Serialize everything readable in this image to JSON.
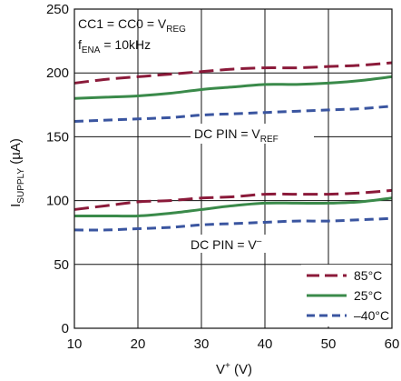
{
  "chart_data": {
    "type": "line",
    "xlabel": {
      "base": "V",
      "sup": "+",
      "tail": " (V)"
    },
    "ylabel": {
      "base": "I",
      "sub": "SUPPLY",
      "tail": " (µA)"
    },
    "xlim": [
      10,
      60
    ],
    "ylim": [
      0,
      250
    ],
    "x_ticks": [
      "10",
      "20",
      "30",
      "40",
      "50",
      "60"
    ],
    "y_ticks": [
      "0",
      "50",
      "100",
      "150",
      "200",
      "250"
    ],
    "grid": true,
    "legend_position": "bottom-right",
    "annotations": {
      "condition1": {
        "base": "CC1 = CC0 = V",
        "sub": "REG"
      },
      "condition2": {
        "base": "f",
        "sub": "ENA",
        "tail": " = 10kHz"
      },
      "dc_ref": {
        "base": "DC PIN = V",
        "sub": "REF"
      },
      "dc_vminus": {
        "base": "DC PIN = V",
        "sup": "–"
      }
    },
    "x": [
      10,
      15,
      20,
      25,
      30,
      35,
      40,
      45,
      50,
      55,
      60
    ],
    "series": [
      {
        "name": "85°C",
        "color": "#8b1a3a",
        "dash": "long-dash",
        "values": [
          192,
          195,
          197,
          199,
          201,
          203,
          204,
          204,
          205,
          206,
          208
        ]
      },
      {
        "name": "25°C",
        "color": "#3a8a4a",
        "dash": "solid",
        "values": [
          180,
          181,
          182,
          184,
          187,
          189,
          191,
          191,
          192,
          194,
          197
        ]
      },
      {
        "name": "–40°C",
        "color": "#3a55a0",
        "dash": "dashed",
        "values": [
          162,
          163,
          164,
          165,
          167,
          168,
          169,
          170,
          171,
          172,
          174
        ]
      },
      {
        "name": "85°C",
        "color": "#8b1a3a",
        "dash": "long-dash",
        "legend": false,
        "values": [
          93,
          96,
          99,
          100,
          102,
          103,
          105,
          105,
          105,
          106,
          108
        ]
      },
      {
        "name": "25°C",
        "color": "#3a8a4a",
        "dash": "solid",
        "legend": false,
        "values": [
          88,
          88,
          88,
          90,
          93,
          96,
          98,
          98,
          98,
          99,
          102
        ]
      },
      {
        "name": "–40°C",
        "color": "#3a55a0",
        "dash": "dashed",
        "legend": false,
        "values": [
          77,
          77,
          78,
          79,
          81,
          82,
          83,
          84,
          84,
          85,
          86
        ]
      }
    ]
  }
}
